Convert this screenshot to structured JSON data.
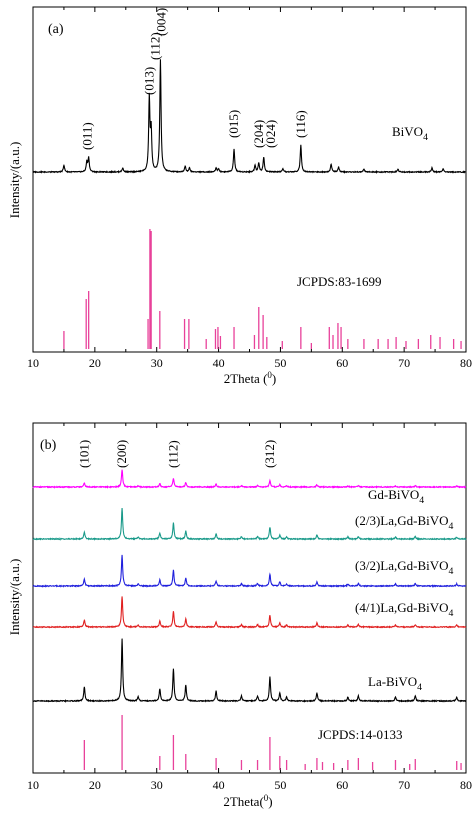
{
  "chart_data": [
    {
      "type": "line",
      "panel_label": "(a)",
      "xlabel": "2Theta (",
      "xlabel_unit": "0",
      "xlabel_close": ")",
      "ylabel": "Intensity/(a.u.)",
      "xlim": [
        10,
        80
      ],
      "x_ticks": [
        10,
        20,
        30,
        40,
        50,
        60,
        70,
        80
      ],
      "grid": false,
      "series": [
        {
          "name": "BiVO4",
          "label_main": "BiVO",
          "label_sub": "4",
          "color": "#000000",
          "peaks": [
            {
              "x": 15.0,
              "h": 7
            },
            {
              "x": 18.7,
              "h": 10
            },
            {
              "x": 19.0,
              "h": 14
            },
            {
              "x": 24.5,
              "h": 4
            },
            {
              "x": 28.8,
              "h": 73
            },
            {
              "x": 29.1,
              "h": 40
            },
            {
              "x": 30.6,
              "h": 112
            },
            {
              "x": 34.6,
              "h": 6
            },
            {
              "x": 35.3,
              "h": 4
            },
            {
              "x": 39.6,
              "h": 4
            },
            {
              "x": 40.0,
              "h": 3
            },
            {
              "x": 42.5,
              "h": 23
            },
            {
              "x": 45.9,
              "h": 7
            },
            {
              "x": 46.5,
              "h": 9
            },
            {
              "x": 47.3,
              "h": 15
            },
            {
              "x": 50.4,
              "h": 3
            },
            {
              "x": 53.3,
              "h": 27
            },
            {
              "x": 58.2,
              "h": 8
            },
            {
              "x": 59.4,
              "h": 5
            },
            {
              "x": 63.5,
              "h": 3
            },
            {
              "x": 69.0,
              "h": 3
            },
            {
              "x": 74.5,
              "h": 4
            },
            {
              "x": 76.3,
              "h": 3
            }
          ]
        }
      ],
      "reference": {
        "name": "JCPDS:83-1699",
        "color": "#e8419a",
        "lines": [
          {
            "x": 15.0,
            "h": 18
          },
          {
            "x": 18.6,
            "h": 50
          },
          {
            "x": 19.0,
            "h": 58
          },
          {
            "x": 28.6,
            "h": 30
          },
          {
            "x": 28.9,
            "h": 120
          },
          {
            "x": 29.1,
            "h": 118
          },
          {
            "x": 30.5,
            "h": 38
          },
          {
            "x": 34.5,
            "h": 30
          },
          {
            "x": 35.2,
            "h": 30
          },
          {
            "x": 38.0,
            "h": 10
          },
          {
            "x": 39.5,
            "h": 20
          },
          {
            "x": 39.9,
            "h": 22
          },
          {
            "x": 40.3,
            "h": 13
          },
          {
            "x": 42.5,
            "h": 22
          },
          {
            "x": 45.8,
            "h": 14
          },
          {
            "x": 46.5,
            "h": 42
          },
          {
            "x": 47.2,
            "h": 34
          },
          {
            "x": 47.8,
            "h": 12
          },
          {
            "x": 50.3,
            "h": 8
          },
          {
            "x": 53.3,
            "h": 22
          },
          {
            "x": 55.0,
            "h": 6
          },
          {
            "x": 57.9,
            "h": 22
          },
          {
            "x": 58.5,
            "h": 14
          },
          {
            "x": 59.3,
            "h": 26
          },
          {
            "x": 59.8,
            "h": 22
          },
          {
            "x": 60.9,
            "h": 10
          },
          {
            "x": 63.5,
            "h": 10
          },
          {
            "x": 65.8,
            "h": 10
          },
          {
            "x": 67.4,
            "h": 10
          },
          {
            "x": 68.7,
            "h": 12
          },
          {
            "x": 70.3,
            "h": 8
          },
          {
            "x": 72.3,
            "h": 10
          },
          {
            "x": 74.3,
            "h": 14
          },
          {
            "x": 75.8,
            "h": 12
          },
          {
            "x": 78.0,
            "h": 10
          },
          {
            "x": 79.2,
            "h": 8
          }
        ]
      },
      "annotations": [
        {
          "text": "(011)",
          "x": 18.8
        },
        {
          "text": "(013)",
          "x": 28.8
        },
        {
          "text": "(112)",
          "x": 29.8
        },
        {
          "text": "(004)",
          "x": 30.8
        },
        {
          "text": "(015)",
          "x": 42.5
        },
        {
          "text": "(204)",
          "x": 46.5
        },
        {
          "text": "(024)",
          "x": 48.5
        },
        {
          "text": "(116)",
          "x": 53.3
        }
      ]
    },
    {
      "type": "line",
      "panel_label": "(b)",
      "xlabel": "2Theta(",
      "xlabel_unit": "0",
      "xlabel_close": ")",
      "ylabel": "Intensity/(a.u.)",
      "xlim": [
        10,
        80
      ],
      "x_ticks": [
        10,
        20,
        30,
        40,
        50,
        60,
        70,
        80
      ],
      "grid": false,
      "series": [
        {
          "name": "Gd-BiVO4",
          "label_main": "Gd-BiVO",
          "label_sub": "4",
          "color": "#ff00ff",
          "scale": 0.28
        },
        {
          "name": "(2/3)La,Gd-BiVO4",
          "label_main": "(2/3)La,Gd-BiVO",
          "label_sub": "4",
          "color": "#1a9a8a",
          "scale": 0.5
        },
        {
          "name": "(3/2)La,Gd-BiVO4",
          "label_main": "(3/2)La,Gd-BiVO",
          "label_sub": "4",
          "color": "#2020dd",
          "scale": 0.5
        },
        {
          "name": "(4/1)La,Gd-BiVO4",
          "label_main": "(4/1)La,Gd-BiVO",
          "label_sub": "4",
          "color": "#e02020",
          "scale": 0.5
        },
        {
          "name": "La-BiVO4",
          "label_main": "La-BiVO",
          "label_sub": "4",
          "color": "#000000",
          "scale": 1.0
        }
      ],
      "peaks": [
        {
          "x": 18.3,
          "h": 14
        },
        {
          "x": 24.4,
          "h": 62
        },
        {
          "x": 27.0,
          "h": 4
        },
        {
          "x": 30.5,
          "h": 12
        },
        {
          "x": 32.7,
          "h": 32
        },
        {
          "x": 34.7,
          "h": 16
        },
        {
          "x": 39.6,
          "h": 10
        },
        {
          "x": 43.7,
          "h": 5
        },
        {
          "x": 46.3,
          "h": 5
        },
        {
          "x": 48.3,
          "h": 24
        },
        {
          "x": 49.9,
          "h": 8
        },
        {
          "x": 51.0,
          "h": 4
        },
        {
          "x": 55.9,
          "h": 8
        },
        {
          "x": 60.9,
          "h": 4
        },
        {
          "x": 62.6,
          "h": 5
        },
        {
          "x": 68.6,
          "h": 4
        },
        {
          "x": 71.8,
          "h": 5
        },
        {
          "x": 78.5,
          "h": 4
        }
      ],
      "reference": {
        "name": "JCPDS:14-0133",
        "color": "#e8419a",
        "lines": [
          {
            "x": 18.3,
            "h": 30
          },
          {
            "x": 24.4,
            "h": 55
          },
          {
            "x": 30.5,
            "h": 14
          },
          {
            "x": 32.7,
            "h": 35
          },
          {
            "x": 34.7,
            "h": 16
          },
          {
            "x": 39.6,
            "h": 12
          },
          {
            "x": 43.7,
            "h": 10
          },
          {
            "x": 46.3,
            "h": 10
          },
          {
            "x": 48.3,
            "h": 33
          },
          {
            "x": 49.9,
            "h": 14
          },
          {
            "x": 51.0,
            "h": 10
          },
          {
            "x": 54.0,
            "h": 6
          },
          {
            "x": 55.9,
            "h": 12
          },
          {
            "x": 56.8,
            "h": 8
          },
          {
            "x": 58.6,
            "h": 7
          },
          {
            "x": 60.9,
            "h": 10
          },
          {
            "x": 62.6,
            "h": 12
          },
          {
            "x": 64.9,
            "h": 8
          },
          {
            "x": 68.6,
            "h": 10
          },
          {
            "x": 70.9,
            "h": 6
          },
          {
            "x": 71.8,
            "h": 11
          },
          {
            "x": 78.5,
            "h": 9
          },
          {
            "x": 79.2,
            "h": 7
          }
        ]
      },
      "annotations": [
        {
          "text": "(101)",
          "x": 18.3
        },
        {
          "text": "(200)",
          "x": 24.4
        },
        {
          "text": "(112)",
          "x": 32.7
        },
        {
          "text": "(312)",
          "x": 48.3
        }
      ]
    }
  ]
}
